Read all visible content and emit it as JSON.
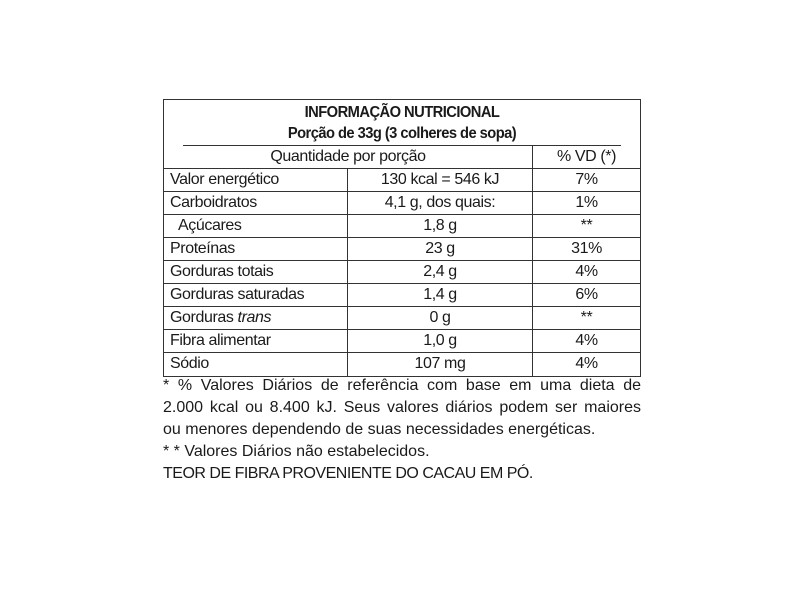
{
  "title": "INFORMAÇÃO NUTRICIONAL",
  "serving": "Porção de 33g (3 colheres de sopa)",
  "header": {
    "quantity": "Quantidade por porção",
    "dv": "% VD (*)"
  },
  "rows": [
    {
      "name": "Valor energético",
      "amount": "130 kcal = 546 kJ",
      "dv": "7%"
    },
    {
      "name": "Carboidratos",
      "amount": "4,1 g, dos quais:",
      "dv": "1%"
    },
    {
      "name": "Açúcares",
      "amount": "1,8 g",
      "dv": "**"
    },
    {
      "name": "Proteínas",
      "amount": "23 g",
      "dv": "31%"
    },
    {
      "name": "Gorduras totais",
      "amount": "2,4 g",
      "dv": "4%"
    },
    {
      "name": "Gorduras saturadas",
      "amount": "1,4 g",
      "dv": "6%"
    },
    {
      "name": "Gorduras",
      "name_italic": "trans",
      "amount": "0 g",
      "dv": "**"
    },
    {
      "name": "Fibra alimentar",
      "amount": "1,0 g",
      "dv": "4%"
    },
    {
      "name": "Sódio",
      "amount": "107 mg",
      "dv": "4%"
    }
  ],
  "notes": {
    "line1": "* % Valores Diários de referência com base em uma dieta de",
    "line2": "2.000 kcal ou 8.400 kJ. Seus valores diários podem ser maiores",
    "line3": "ou menores dependendo de suas necessidades energéticas.",
    "line4": "* * Valores Diários não estabelecidos.",
    "line5": "TEOR DE FIBRA PROVENIENTE DO CACAU EM PÓ."
  }
}
